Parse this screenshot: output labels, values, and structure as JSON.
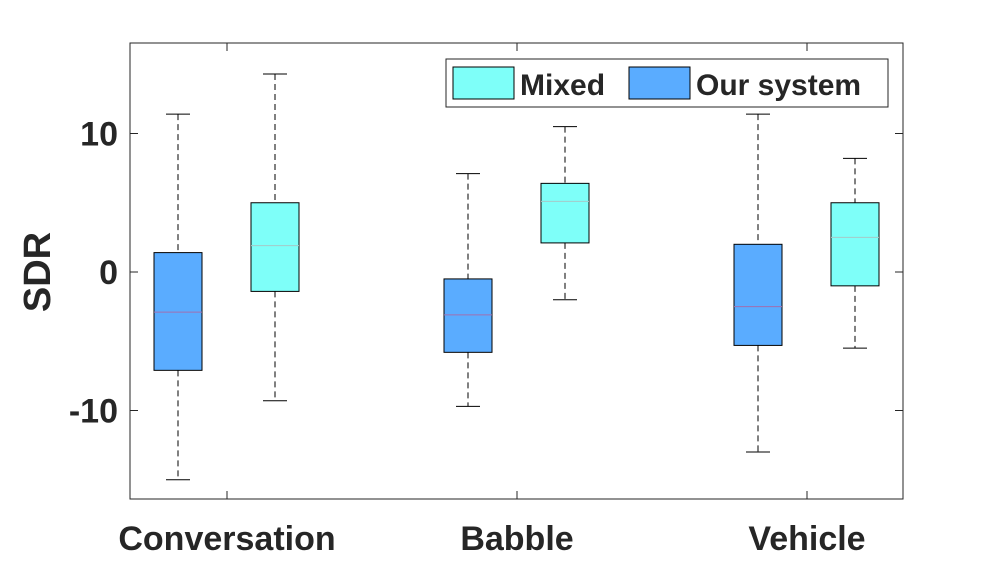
{
  "chart_data": {
    "type": "box",
    "title": "",
    "xlabel": "",
    "ylabel": "SDR",
    "ylim": [
      -16.5,
      16.5
    ],
    "yticks": [
      -10,
      0,
      10
    ],
    "ytick_labels": [
      "-10",
      "0",
      "10"
    ],
    "categories": [
      "Conversation",
      "Babble",
      "Vehicle"
    ],
    "grid": false,
    "legend_position": "top-right",
    "series": [
      {
        "name": "Our system",
        "color": "#5aacff",
        "boxes": [
          {
            "whisker_low": -15.0,
            "q1": -7.1,
            "median": -2.9,
            "q3": 1.4,
            "whisker_high": 11.4
          },
          {
            "whisker_low": -9.7,
            "q1": -5.8,
            "median": -3.1,
            "q3": -0.5,
            "whisker_high": 7.1
          },
          {
            "whisker_low": -13.0,
            "q1": -5.3,
            "median": -2.5,
            "q3": 2.0,
            "whisker_high": 11.4
          }
        ]
      },
      {
        "name": "Mixed",
        "color": "#7efff9",
        "boxes": [
          {
            "whisker_low": -9.3,
            "q1": -1.4,
            "median": 1.9,
            "q3": 5.0,
            "whisker_high": 14.3
          },
          {
            "whisker_low": -2.0,
            "q1": 2.1,
            "median": 5.1,
            "q3": 6.4,
            "whisker_high": 10.5
          },
          {
            "whisker_low": -5.5,
            "q1": -1.0,
            "median": 2.5,
            "q3": 5.0,
            "whisker_high": 8.2
          }
        ]
      }
    ],
    "legend": [
      {
        "label": "Mixed",
        "color": "#7efff9"
      },
      {
        "label": "Our system",
        "color": "#5aacff"
      }
    ]
  }
}
